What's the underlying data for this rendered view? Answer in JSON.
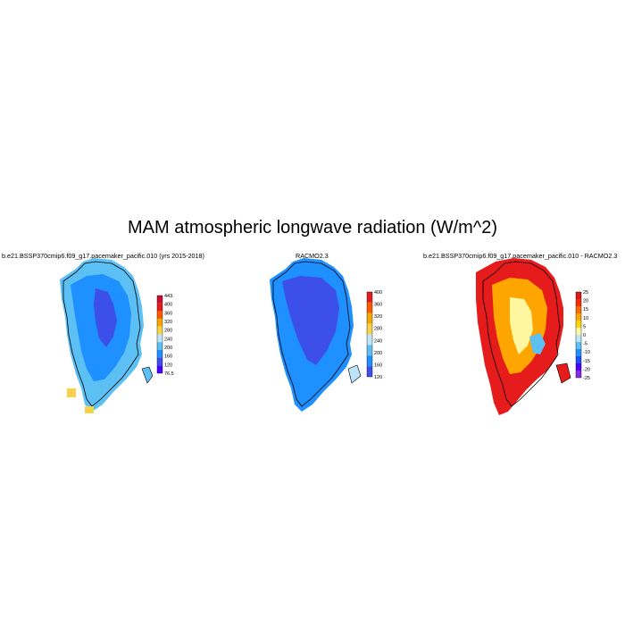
{
  "title": "MAM atmospheric longwave radiation (W/m^2)",
  "colors": {
    "ramp_abs": [
      "#4b00ff",
      "#3c4fe8",
      "#1e90ff",
      "#5cc0f5",
      "#bde5f7",
      "#f7d24a",
      "#f7a800",
      "#ff5a00",
      "#e61c1c",
      "#c8102e"
    ],
    "ramp_diff": [
      "#8a2be2",
      "#4b00ff",
      "#1e4fff",
      "#1e90ff",
      "#5cc0f5",
      "#bde5f7",
      "#fff7a0",
      "#ffd700",
      "#ffa500",
      "#ff6a00",
      "#ff2a00",
      "#d7191c"
    ]
  },
  "panels": [
    {
      "title": "b.e21.BSSP370cmip6.f09_g17.pacemaker_pacific.010 (yrs 2015-2018)",
      "colorbar": {
        "min": 76.5,
        "max": 443.1,
        "labels": [
          "443.1",
          "400",
          "360",
          "320",
          "280",
          "240",
          "200",
          "160",
          "120",
          "76.5"
        ]
      }
    },
    {
      "title": "RACMO2.3",
      "colorbar": {
        "labels": [
          "400",
          "360",
          "320",
          "280",
          "240",
          "200",
          "160",
          "120"
        ]
      }
    },
    {
      "title": "b.e21.BSSP370cmip6.f09_g17.pacemaker_pacific.010 - RACMO2.3",
      "colorbar": {
        "labels": [
          "25",
          "20",
          "15",
          "10",
          "5",
          "0",
          "-5",
          "-10",
          "-15",
          "-20",
          "-25"
        ]
      }
    }
  ]
}
